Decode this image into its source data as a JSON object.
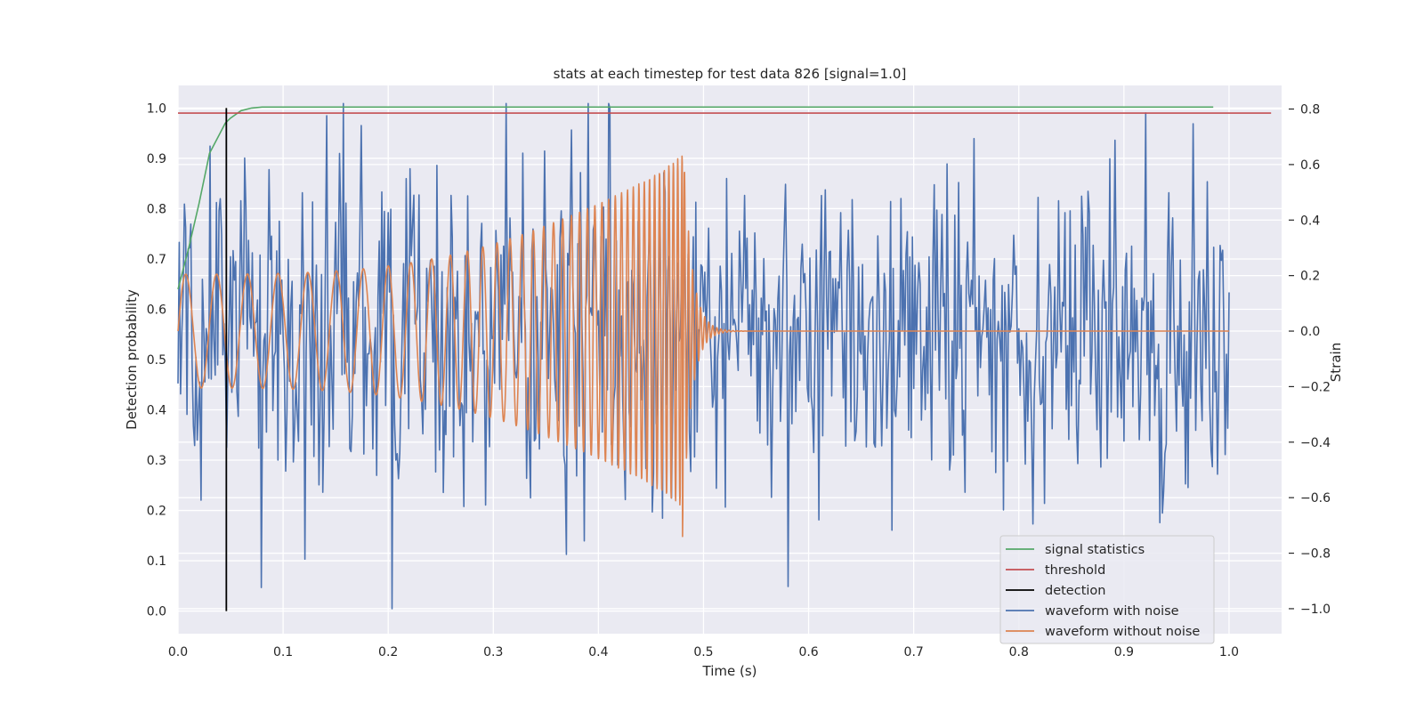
{
  "chart_data": {
    "type": "line",
    "title": "stats at each timestep for test data 826 [signal=1.0]",
    "xlabel": "Time (s)",
    "ylabel": "Detection probability",
    "y2label": "Strain",
    "xlim": [
      0.0,
      1.05
    ],
    "ylim": [
      -0.045,
      1.045
    ],
    "y2lim": [
      -1.09,
      0.885
    ],
    "xticks": [
      "0.0",
      "0.1",
      "0.2",
      "0.3",
      "0.4",
      "0.5",
      "0.6",
      "0.7",
      "0.8",
      "0.9",
      "1.0"
    ],
    "yticks": [
      "0.0",
      "0.1",
      "0.2",
      "0.3",
      "0.4",
      "0.5",
      "0.6",
      "0.7",
      "0.8",
      "0.9",
      "1.0"
    ],
    "y2ticks": [
      "−1.0",
      "−0.8",
      "−0.6",
      "−0.4",
      "−0.2",
      "0.0",
      "0.2",
      "0.4",
      "0.6",
      "0.8"
    ],
    "grid": true,
    "legend_position": "lower-right",
    "colors": {
      "background": "#eaeaf2",
      "grid": "#ffffff",
      "signal_statistics": "#55a868",
      "threshold": "#c44e52",
      "detection": "#000000",
      "waveform_with_noise": "#4c72b0",
      "waveform_without_noise": "#dd8452"
    },
    "legend": [
      {
        "label": "signal statistics",
        "color": "#55a868"
      },
      {
        "label": "threshold",
        "color": "#c44e52"
      },
      {
        "label": "detection",
        "color": "#000000"
      },
      {
        "label": "waveform with noise",
        "color": "#4c72b0"
      },
      {
        "label": "waveform without noise",
        "color": "#dd8452"
      }
    ],
    "signal_statistics": {
      "x": [
        0.0,
        0.01,
        0.02,
        0.03,
        0.04,
        0.045,
        0.05,
        0.06,
        0.07,
        0.08,
        0.1,
        0.2,
        0.5,
        0.985
      ],
      "y": [
        0.64,
        0.72,
        0.81,
        0.91,
        0.95,
        0.97,
        0.98,
        0.995,
        1.0,
        1.002,
        1.002,
        1.002,
        1.002,
        1.002
      ]
    },
    "threshold": {
      "value": 0.99,
      "x_range": [
        0.0,
        1.04
      ]
    },
    "detection": {
      "x": 0.046,
      "y_range": [
        0.0,
        1.0
      ]
    },
    "waveform_without_noise": {
      "axis": "right",
      "x_range": [
        0.0,
        1.0
      ],
      "merger_time": 0.48,
      "amplitude_start": 0.2,
      "amplitude_peak": 0.66,
      "peak_negative": -0.74,
      "ringdown_end": 0.53,
      "freq_start_hz": 34,
      "freq_end_hz": 250
    },
    "waveform_with_noise": {
      "axis": "right",
      "x_range": [
        0.0,
        1.0
      ],
      "samples": 820,
      "noise_std": 0.28,
      "max": 0.82,
      "min": -1.0,
      "notable_extremes": [
        {
          "x": 0.157,
          "y": 0.82
        },
        {
          "x": 0.312,
          "y": 0.82
        },
        {
          "x": 0.204,
          "y": -1.0
        },
        {
          "x": 0.581,
          "y": -0.92
        },
        {
          "x": 0.934,
          "y": -0.69
        }
      ]
    }
  }
}
